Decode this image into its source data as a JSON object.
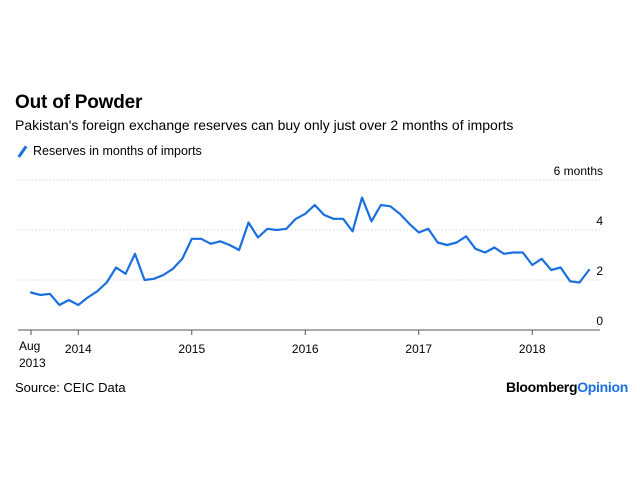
{
  "title": "Out of Powder",
  "subtitle": "Pakistan's foreign exchange reserves can buy only just over 2 months of imports",
  "source": "Source: CEIC Data",
  "brand": {
    "part1": "Bloomberg",
    "part2": "Opinion"
  },
  "colors": {
    "line": "#1a6fe0",
    "grid": "#d9d9d9",
    "axis": "#555555",
    "text": "#000000"
  },
  "chart_data": {
    "type": "line",
    "title": "Out of Powder",
    "subtitle": "Pakistan's foreign exchange reserves can buy only just over 2 months of imports",
    "xlabel": "",
    "ylabel": "",
    "x_ticks": [
      "Aug 2013",
      "2014",
      "2015",
      "2016",
      "2017",
      "2018"
    ],
    "y_ticks": [
      0,
      2,
      4,
      6
    ],
    "y_tick_labels": [
      "0",
      "2",
      "4",
      "6 months"
    ],
    "ylim": [
      0,
      6
    ],
    "grid": true,
    "legend": "top-left",
    "series": [
      {
        "name": "Reserves in months of imports",
        "x": [
          "2013-08",
          "2013-09",
          "2013-10",
          "2013-11",
          "2013-12",
          "2014-01",
          "2014-02",
          "2014-03",
          "2014-04",
          "2014-05",
          "2014-06",
          "2014-07",
          "2014-08",
          "2014-09",
          "2014-10",
          "2014-11",
          "2014-12",
          "2015-01",
          "2015-02",
          "2015-03",
          "2015-04",
          "2015-05",
          "2015-06",
          "2015-07",
          "2015-08",
          "2015-09",
          "2015-10",
          "2015-11",
          "2015-12",
          "2016-01",
          "2016-02",
          "2016-03",
          "2016-04",
          "2016-05",
          "2016-06",
          "2016-07",
          "2016-08",
          "2016-09",
          "2016-10",
          "2016-11",
          "2016-12",
          "2017-01",
          "2017-02",
          "2017-03",
          "2017-04",
          "2017-05",
          "2017-06",
          "2017-07",
          "2017-08",
          "2017-09",
          "2017-10",
          "2017-11",
          "2017-12",
          "2018-01",
          "2018-02",
          "2018-03",
          "2018-04",
          "2018-05",
          "2018-06",
          "2018-07"
        ],
        "values": [
          1.5,
          1.4,
          1.45,
          1.0,
          1.2,
          1.0,
          1.3,
          1.55,
          1.9,
          2.5,
          2.25,
          3.05,
          2.0,
          2.05,
          2.2,
          2.45,
          2.85,
          3.65,
          3.65,
          3.45,
          3.55,
          3.4,
          3.2,
          4.3,
          3.7,
          4.05,
          4.0,
          4.05,
          4.45,
          4.65,
          5.0,
          4.6,
          4.45,
          4.45,
          3.95,
          5.3,
          4.35,
          5.0,
          4.95,
          4.65,
          4.25,
          3.9,
          4.05,
          3.5,
          3.4,
          3.5,
          3.75,
          3.25,
          3.1,
          3.3,
          3.05,
          3.1,
          3.1,
          2.6,
          2.85,
          2.4,
          2.5,
          1.95,
          1.9,
          2.4
        ]
      }
    ]
  }
}
